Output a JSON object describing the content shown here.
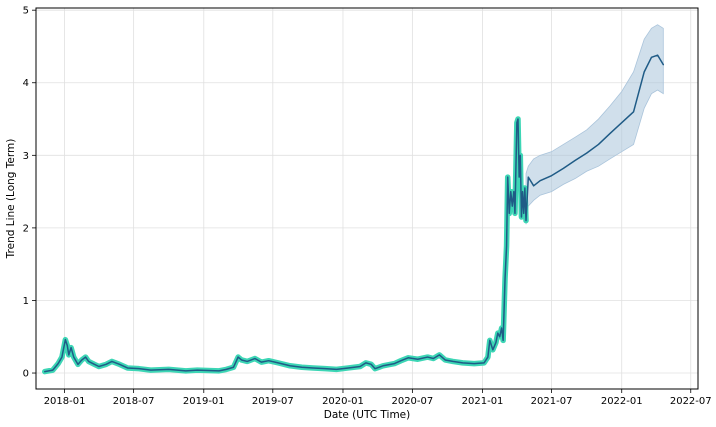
{
  "chart_data": {
    "type": "line",
    "title": "",
    "xlabel": "Date (UTC Time)",
    "ylabel": "Trend Line (Long Term)",
    "xlim": [
      "2017-10-18",
      "2022-07-20"
    ],
    "ylim": [
      -0.22,
      5.03
    ],
    "grid": true,
    "x_ticks": [
      "2018-01-01",
      "2018-07-01",
      "2019-01-01",
      "2019-07-01",
      "2020-01-01",
      "2020-07-01",
      "2021-01-01",
      "2021-07-01",
      "2022-01-01",
      "2022-07-01"
    ],
    "x_tick_labels": [
      "2018-01",
      "2018-07",
      "2019-01",
      "2019-07",
      "2020-01",
      "2020-07",
      "2021-01",
      "2021-07",
      "2022-01",
      "2022-07"
    ],
    "y_ticks": [
      0,
      1,
      2,
      3,
      4,
      5
    ],
    "y_tick_labels": [
      "0",
      "1",
      "2",
      "3",
      "4",
      "5"
    ],
    "series": [
      {
        "color": "#3dd6b5",
        "points": [
          [
            "2017-11-10",
            0.02
          ],
          [
            "2017-12-01",
            0.04
          ],
          [
            "2017-12-15",
            0.13
          ],
          [
            "2017-12-25",
            0.22
          ],
          [
            "2018-01-03",
            0.46
          ],
          [
            "2018-01-08",
            0.38
          ],
          [
            "2018-01-12",
            0.25
          ],
          [
            "2018-01-18",
            0.35
          ],
          [
            "2018-01-25",
            0.22
          ],
          [
            "2018-02-05",
            0.12
          ],
          [
            "2018-02-15",
            0.18
          ],
          [
            "2018-02-25",
            0.22
          ],
          [
            "2018-03-05",
            0.16
          ],
          [
            "2018-03-20",
            0.12
          ],
          [
            "2018-04-01",
            0.09
          ],
          [
            "2018-04-20",
            0.12
          ],
          [
            "2018-05-05",
            0.16
          ],
          [
            "2018-05-25",
            0.12
          ],
          [
            "2018-06-15",
            0.07
          ],
          [
            "2018-07-15",
            0.06
          ],
          [
            "2018-08-15",
            0.04
          ],
          [
            "2018-10-01",
            0.05
          ],
          [
            "2018-11-15",
            0.03
          ],
          [
            "2018-12-15",
            0.04
          ],
          [
            "2019-02-10",
            0.03
          ],
          [
            "2019-03-01",
            0.05
          ],
          [
            "2019-03-20",
            0.08
          ],
          [
            "2019-04-01",
            0.22
          ],
          [
            "2019-04-10",
            0.18
          ],
          [
            "2019-04-25",
            0.16
          ],
          [
            "2019-05-15",
            0.2
          ],
          [
            "2019-06-01",
            0.15
          ],
          [
            "2019-06-20",
            0.17
          ],
          [
            "2019-07-15",
            0.14
          ],
          [
            "2019-08-15",
            0.1
          ],
          [
            "2019-09-15",
            0.08
          ],
          [
            "2019-10-15",
            0.07
          ],
          [
            "2019-11-15",
            0.06
          ],
          [
            "2019-12-15",
            0.05
          ],
          [
            "2020-01-15",
            0.07
          ],
          [
            "2020-02-15",
            0.09
          ],
          [
            "2020-03-01",
            0.14
          ],
          [
            "2020-03-15",
            0.12
          ],
          [
            "2020-03-25",
            0.06
          ],
          [
            "2020-04-15",
            0.1
          ],
          [
            "2020-05-15",
            0.13
          ],
          [
            "2020-06-01",
            0.17
          ],
          [
            "2020-06-20",
            0.21
          ],
          [
            "2020-07-15",
            0.19
          ],
          [
            "2020-08-10",
            0.22
          ],
          [
            "2020-08-25",
            0.2
          ],
          [
            "2020-09-10",
            0.25
          ],
          [
            "2020-09-25",
            0.18
          ],
          [
            "2020-10-15",
            0.16
          ],
          [
            "2020-11-10",
            0.14
          ],
          [
            "2020-12-10",
            0.13
          ],
          [
            "2021-01-05",
            0.14
          ],
          [
            "2021-01-15",
            0.22
          ],
          [
            "2021-01-20",
            0.45
          ],
          [
            "2021-01-28",
            0.32
          ],
          [
            "2021-02-05",
            0.42
          ],
          [
            "2021-02-10",
            0.55
          ],
          [
            "2021-02-15",
            0.5
          ],
          [
            "2021-02-20",
            0.62
          ],
          [
            "2021-02-24",
            0.45
          ],
          [
            "2021-03-01",
            1.3
          ],
          [
            "2021-03-05",
            1.75
          ],
          [
            "2021-03-08",
            2.7
          ],
          [
            "2021-03-12",
            2.2
          ],
          [
            "2021-03-16",
            2.5
          ],
          [
            "2021-03-20",
            2.3
          ],
          [
            "2021-03-24",
            2.5
          ],
          [
            "2021-03-27",
            2.2
          ],
          [
            "2021-04-01",
            3.45
          ],
          [
            "2021-04-04",
            3.5
          ],
          [
            "2021-04-07",
            2.7
          ],
          [
            "2021-04-10",
            3.0
          ],
          [
            "2021-04-13",
            2.15
          ],
          [
            "2021-04-16",
            2.5
          ],
          [
            "2021-04-19",
            2.2
          ],
          [
            "2021-04-22",
            2.55
          ],
          [
            "2021-04-25",
            2.1
          ]
        ]
      },
      {
        "color": "#1f5b86",
        "points": [
          [
            "2017-11-10",
            0.02
          ],
          [
            "2017-12-01",
            0.04
          ],
          [
            "2017-12-15",
            0.13
          ],
          [
            "2017-12-25",
            0.22
          ],
          [
            "2018-01-03",
            0.46
          ],
          [
            "2018-01-08",
            0.38
          ],
          [
            "2018-01-12",
            0.25
          ],
          [
            "2018-01-18",
            0.35
          ],
          [
            "2018-01-25",
            0.22
          ],
          [
            "2018-02-05",
            0.12
          ],
          [
            "2018-02-15",
            0.18
          ],
          [
            "2018-02-25",
            0.22
          ],
          [
            "2018-03-05",
            0.16
          ],
          [
            "2018-03-20",
            0.12
          ],
          [
            "2018-04-01",
            0.09
          ],
          [
            "2018-04-20",
            0.12
          ],
          [
            "2018-05-05",
            0.16
          ],
          [
            "2018-05-25",
            0.12
          ],
          [
            "2018-06-15",
            0.07
          ],
          [
            "2018-07-15",
            0.06
          ],
          [
            "2018-08-15",
            0.04
          ],
          [
            "2018-10-01",
            0.05
          ],
          [
            "2018-11-15",
            0.03
          ],
          [
            "2018-12-15",
            0.04
          ],
          [
            "2019-02-10",
            0.03
          ],
          [
            "2019-03-01",
            0.05
          ],
          [
            "2019-03-20",
            0.08
          ],
          [
            "2019-04-01",
            0.22
          ],
          [
            "2019-04-10",
            0.18
          ],
          [
            "2019-04-25",
            0.16
          ],
          [
            "2019-05-15",
            0.2
          ],
          [
            "2019-06-01",
            0.15
          ],
          [
            "2019-06-20",
            0.17
          ],
          [
            "2019-07-15",
            0.14
          ],
          [
            "2019-08-15",
            0.1
          ],
          [
            "2019-09-15",
            0.08
          ],
          [
            "2019-10-15",
            0.07
          ],
          [
            "2019-11-15",
            0.06
          ],
          [
            "2019-12-15",
            0.05
          ],
          [
            "2020-01-15",
            0.07
          ],
          [
            "2020-02-15",
            0.09
          ],
          [
            "2020-03-01",
            0.14
          ],
          [
            "2020-03-15",
            0.12
          ],
          [
            "2020-03-25",
            0.06
          ],
          [
            "2020-04-15",
            0.1
          ],
          [
            "2020-05-15",
            0.13
          ],
          [
            "2020-06-01",
            0.17
          ],
          [
            "2020-06-20",
            0.21
          ],
          [
            "2020-07-15",
            0.19
          ],
          [
            "2020-08-10",
            0.22
          ],
          [
            "2020-08-25",
            0.2
          ],
          [
            "2020-09-10",
            0.25
          ],
          [
            "2020-09-25",
            0.18
          ],
          [
            "2020-10-15",
            0.16
          ],
          [
            "2020-11-10",
            0.14
          ],
          [
            "2020-12-10",
            0.13
          ],
          [
            "2021-01-05",
            0.14
          ],
          [
            "2021-01-15",
            0.22
          ],
          [
            "2021-01-20",
            0.45
          ],
          [
            "2021-01-28",
            0.32
          ],
          [
            "2021-02-05",
            0.42
          ],
          [
            "2021-02-10",
            0.55
          ],
          [
            "2021-02-15",
            0.5
          ],
          [
            "2021-02-20",
            0.62
          ],
          [
            "2021-02-24",
            0.45
          ],
          [
            "2021-03-01",
            1.3
          ],
          [
            "2021-03-05",
            1.75
          ],
          [
            "2021-03-08",
            2.7
          ],
          [
            "2021-03-12",
            2.2
          ],
          [
            "2021-03-16",
            2.5
          ],
          [
            "2021-03-20",
            2.3
          ],
          [
            "2021-03-24",
            2.5
          ],
          [
            "2021-03-27",
            2.2
          ],
          [
            "2021-04-01",
            3.45
          ],
          [
            "2021-04-04",
            3.5
          ],
          [
            "2021-04-07",
            2.7
          ],
          [
            "2021-04-10",
            3.0
          ],
          [
            "2021-04-13",
            2.15
          ],
          [
            "2021-04-16",
            2.5
          ],
          [
            "2021-04-19",
            2.2
          ],
          [
            "2021-04-22",
            2.55
          ],
          [
            "2021-04-25",
            2.1
          ],
          [
            "2021-05-01",
            2.7
          ],
          [
            "2021-05-15",
            2.58
          ],
          [
            "2021-06-01",
            2.65
          ],
          [
            "2021-07-01",
            2.72
          ],
          [
            "2021-08-01",
            2.82
          ],
          [
            "2021-09-01",
            2.93
          ],
          [
            "2021-10-01",
            3.03
          ],
          [
            "2021-11-01",
            3.15
          ],
          [
            "2021-12-01",
            3.3
          ],
          [
            "2022-01-01",
            3.45
          ],
          [
            "2022-02-01",
            3.6
          ],
          [
            "2022-03-01",
            4.15
          ],
          [
            "2022-03-20",
            4.35
          ],
          [
            "2022-04-05",
            4.38
          ],
          [
            "2022-04-20",
            4.25
          ]
        ]
      }
    ],
    "confidence_band": {
      "color": "#aac4db",
      "points": [
        [
          "2021-04-25",
          2.05,
          2.75
        ],
        [
          "2021-05-01",
          2.3,
          2.85
        ],
        [
          "2021-05-15",
          2.38,
          2.95
        ],
        [
          "2021-06-01",
          2.45,
          3.0
        ],
        [
          "2021-07-01",
          2.5,
          3.05
        ],
        [
          "2021-08-01",
          2.6,
          3.15
        ],
        [
          "2021-09-01",
          2.68,
          3.25
        ],
        [
          "2021-10-01",
          2.78,
          3.35
        ],
        [
          "2021-11-01",
          2.85,
          3.5
        ],
        [
          "2021-12-01",
          2.95,
          3.68
        ],
        [
          "2022-01-01",
          3.05,
          3.88
        ],
        [
          "2022-02-01",
          3.15,
          4.15
        ],
        [
          "2022-03-01",
          3.65,
          4.6
        ],
        [
          "2022-03-20",
          3.85,
          4.75
        ],
        [
          "2022-04-05",
          3.9,
          4.8
        ],
        [
          "2022-04-20",
          3.85,
          4.75
        ]
      ]
    }
  }
}
